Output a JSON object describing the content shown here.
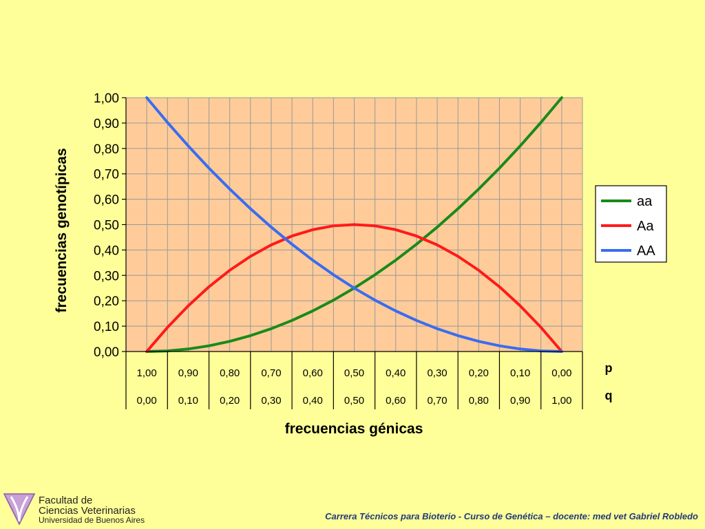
{
  "chart_data": {
    "type": "line",
    "ylabel": "frecuencias genotípicas",
    "xlabel": "frecuencias génicas",
    "ylim": [
      0,
      1
    ],
    "ytick_labels": [
      "0,00",
      "0,10",
      "0,20",
      "0,30",
      "0,40",
      "0,50",
      "0,60",
      "0,70",
      "0,80",
      "0,90",
      "1,00"
    ],
    "x_rows": [
      {
        "label": "p",
        "ticks": [
          "1,00",
          "0,90",
          "0,80",
          "0,70",
          "0,60",
          "0,50",
          "0,40",
          "0,30",
          "0,20",
          "0,10",
          "0,00"
        ]
      },
      {
        "label": "q",
        "ticks": [
          "0,00",
          "0,10",
          "0,20",
          "0,30",
          "0,40",
          "0,50",
          "0,60",
          "0,70",
          "0,80",
          "0,90",
          "1,00"
        ]
      }
    ],
    "x": [
      0,
      0.05,
      0.1,
      0.15,
      0.2,
      0.25,
      0.3,
      0.35,
      0.4,
      0.45,
      0.5,
      0.55,
      0.6,
      0.65,
      0.7,
      0.75,
      0.8,
      0.85,
      0.9,
      0.95,
      1.0
    ],
    "series": [
      {
        "name": "aa",
        "color": "#1a8a1a",
        "values": [
          0,
          0.0025,
          0.01,
          0.0225,
          0.04,
          0.0625,
          0.09,
          0.1225,
          0.16,
          0.2025,
          0.25,
          0.3025,
          0.36,
          0.4225,
          0.49,
          0.5625,
          0.64,
          0.7225,
          0.81,
          0.9025,
          1.0
        ]
      },
      {
        "name": "Aa",
        "color": "#ff1a1a",
        "values": [
          0,
          0.095,
          0.18,
          0.255,
          0.32,
          0.375,
          0.42,
          0.455,
          0.48,
          0.495,
          0.5,
          0.495,
          0.48,
          0.455,
          0.42,
          0.375,
          0.32,
          0.255,
          0.18,
          0.095,
          0
        ]
      },
      {
        "name": "AA",
        "color": "#3a6cf0",
        "values": [
          1.0,
          0.9025,
          0.81,
          0.7225,
          0.64,
          0.5625,
          0.49,
          0.4225,
          0.36,
          0.3025,
          0.25,
          0.2025,
          0.16,
          0.1225,
          0.09,
          0.0625,
          0.04,
          0.0225,
          0.01,
          0.0025,
          0
        ]
      }
    ],
    "grid": true,
    "legend": "right",
    "plot_background": "#ffcc99"
  },
  "logo": {
    "line1": "Facultad de",
    "line2": "Ciencias Veterinarias",
    "line3": "Universidad de Buenos Aires"
  },
  "footer": "Carrera Técnicos para Bioterio -  Curso de Genética – docente: med vet Gabriel Robledo"
}
